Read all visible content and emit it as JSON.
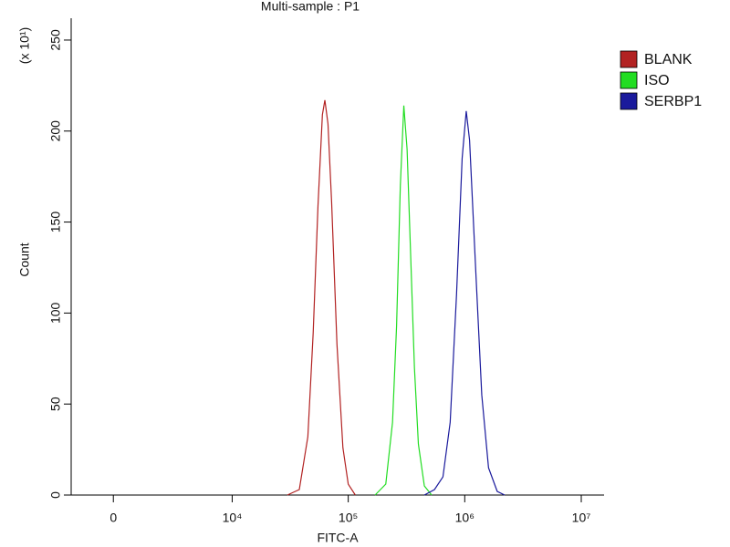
{
  "chart_data": {
    "type": "line",
    "title": "Multi-sample : P1",
    "xlabel": "FITC-A",
    "ylabel": "Count",
    "ylabel_multiplier": "(x 10¹)",
    "xscale": "asinh",
    "xlim": [
      -1800,
      15700000
    ],
    "xticks": [
      0,
      {
        "value": 10000,
        "label": "10⁴"
      },
      {
        "value": 100000,
        "label": "10⁵"
      },
      {
        "value": 1000000,
        "label": "10⁶"
      },
      {
        "value": 10000000,
        "label": "10⁷"
      }
    ],
    "ylim": [
      0,
      262
    ],
    "yticks": [
      0,
      50,
      100,
      150,
      200,
      250
    ],
    "legend": "right",
    "series": [
      {
        "name": "BLANK",
        "color": "#b22222",
        "x": [
          30000,
          38000,
          45000,
          50000,
          55000,
          60000,
          63000,
          67000,
          72000,
          80000,
          90000,
          100000,
          115000
        ],
        "values": [
          0,
          3,
          32,
          89,
          159,
          209,
          217,
          204,
          161,
          83,
          26,
          6,
          0
        ]
      },
      {
        "name": "ISO",
        "color": "#22dd22",
        "x": [
          170000,
          210000,
          240000,
          260000,
          280000,
          300000,
          320000,
          340000,
          370000,
          400000,
          450000,
          520000
        ],
        "values": [
          0,
          6,
          40,
          93,
          170,
          214,
          190,
          140,
          70,
          28,
          5,
          0
        ]
      },
      {
        "name": "SERBP1",
        "color": "#1a1a9c",
        "x": [
          450000,
          550000,
          650000,
          750000,
          850000,
          950000,
          1030000,
          1100000,
          1250000,
          1400000,
          1600000,
          1900000,
          2200000
        ],
        "values": [
          0,
          3,
          10,
          40,
          110,
          185,
          211,
          195,
          120,
          55,
          15,
          2,
          0
        ]
      }
    ]
  }
}
